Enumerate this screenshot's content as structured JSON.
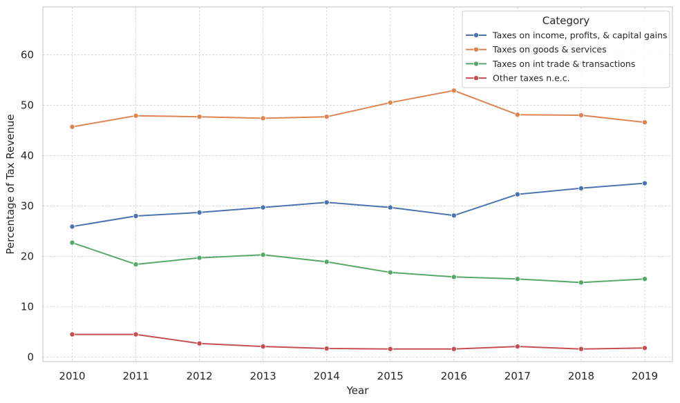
{
  "chart_data": {
    "type": "line",
    "xlabel": "Year",
    "ylabel": "Percentage of Tax Revenue",
    "x": [
      "2010",
      "2011",
      "2012",
      "2013",
      "2014",
      "2015",
      "2016",
      "2017",
      "2018",
      "2019"
    ],
    "yticks": [
      "0",
      "10",
      "20",
      "30",
      "40",
      "50",
      "60"
    ],
    "ylim": [
      -0.9,
      69.5
    ],
    "grid": true,
    "legend": {
      "title": "Category",
      "placement": "top-right"
    },
    "series": [
      {
        "name": "Taxes on income, profits, & capital gains",
        "color": "#4c72b0",
        "values": [
          25.9,
          28.0,
          28.7,
          29.7,
          30.7,
          29.7,
          28.1,
          32.3,
          33.5,
          34.5
        ]
      },
      {
        "name": "Taxes on goods & services",
        "color": "#dd8452",
        "values": [
          45.7,
          47.9,
          47.7,
          47.4,
          47.7,
          50.5,
          52.9,
          48.1,
          48.0,
          46.6
        ]
      },
      {
        "name": "Taxes on int trade & transactions",
        "color": "#55a868",
        "values": [
          22.7,
          18.4,
          19.7,
          20.3,
          18.9,
          16.8,
          15.9,
          15.5,
          14.8,
          15.5
        ]
      },
      {
        "name": "Other taxes n.e.c.",
        "color": "#c44e52",
        "values": [
          4.5,
          4.5,
          2.7,
          2.1,
          1.7,
          1.6,
          1.6,
          2.1,
          1.6,
          1.8
        ]
      }
    ]
  }
}
